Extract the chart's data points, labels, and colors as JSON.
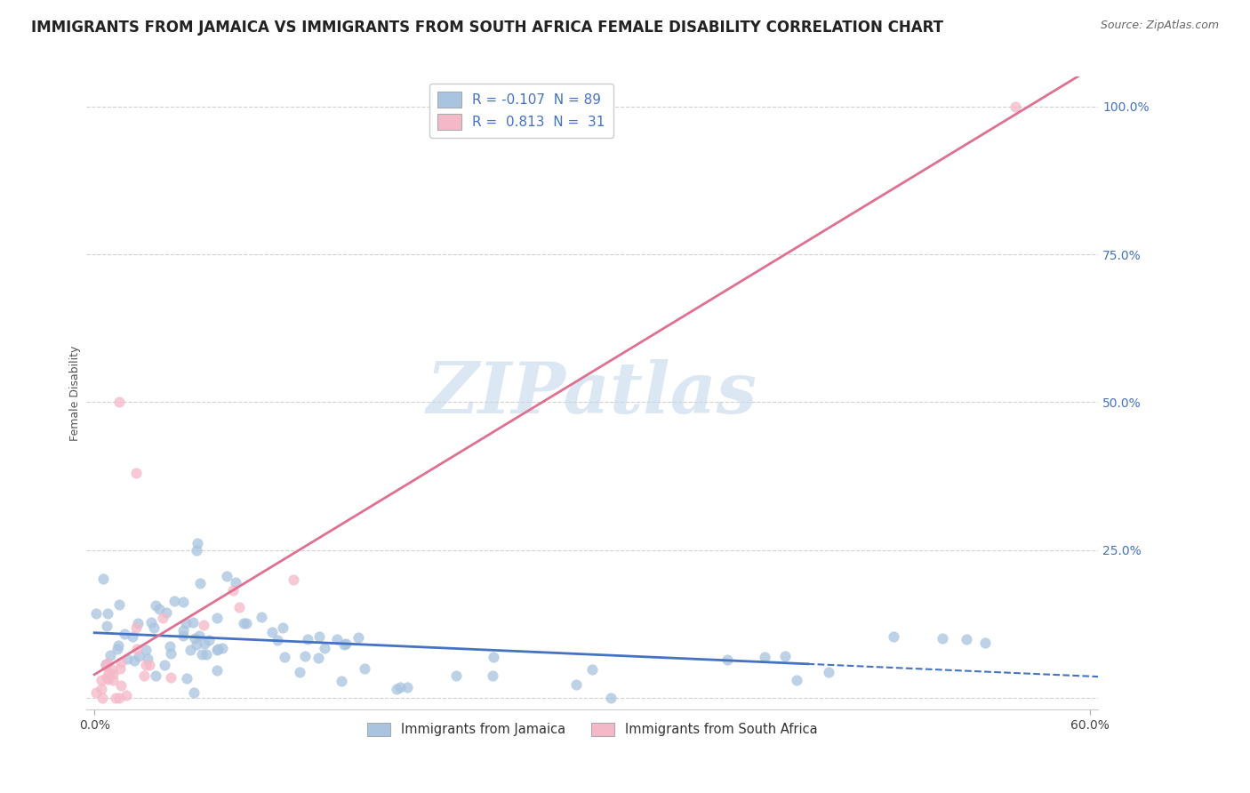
{
  "title": "IMMIGRANTS FROM JAMAICA VS IMMIGRANTS FROM SOUTH AFRICA FEMALE DISABILITY CORRELATION CHART",
  "source": "Source: ZipAtlas.com",
  "ylabel": "Female Disability",
  "legend_entry1_r": "-0.107",
  "legend_entry1_n": "89",
  "legend_entry2_r": "0.813",
  "legend_entry2_n": "31",
  "legend_label1": "Immigrants from Jamaica",
  "legend_label2": "Immigrants from South Africa",
  "blue_scatter_color": "#a8c4e0",
  "pink_scatter_color": "#f5b8c8",
  "blue_line_color": "#4472C4",
  "pink_line_color": "#e07090",
  "watermark_color": "#c5d8ed",
  "r1": -0.107,
  "n1": 89,
  "r2": 0.813,
  "n2": 31,
  "xmin": 0.0,
  "xmax": 0.6,
  "ymin": 0.0,
  "ymax": 1.0,
  "title_fontsize": 12,
  "axis_label_fontsize": 9,
  "tick_fontsize": 10,
  "background_color": "#ffffff",
  "grid_color": "#cccccc"
}
